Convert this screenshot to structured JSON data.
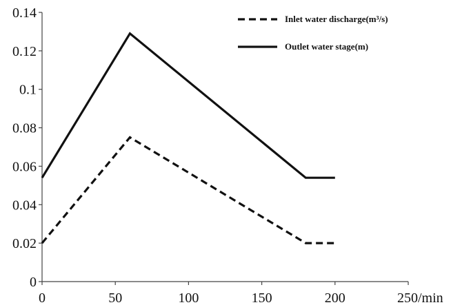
{
  "chart_data": {
    "type": "line",
    "x_tick_labels": [
      "0",
      "50",
      "100",
      "150",
      "200",
      "250/min"
    ],
    "y_tick_labels": [
      "0",
      "0.02",
      "0.04",
      "0.06",
      "0.08",
      "0.1",
      "0.12",
      "0.14"
    ],
    "xlim": [
      0,
      250
    ],
    "ylim": [
      0,
      0.14
    ],
    "x_ticks": [
      0,
      50,
      100,
      150,
      200,
      250
    ],
    "y_ticks": [
      0,
      0.02,
      0.04,
      0.06,
      0.08,
      0.1,
      0.12,
      0.14
    ],
    "grid": false,
    "legend_position": "top-right",
    "series": [
      {
        "name": "Inlet water discharge(m³/s)",
        "legend_label": "Inlet water discharge(m³/s)",
        "style": "dashed",
        "color": "#111111",
        "x": [
          0,
          60,
          180,
          200
        ],
        "y": [
          0.02,
          0.075,
          0.02,
          0.02
        ]
      },
      {
        "name": "Outlet water stage(m)",
        "legend_label": "Outlet water stage(m)",
        "style": "solid",
        "color": "#111111",
        "x": [
          0,
          60,
          180,
          200
        ],
        "y": [
          0.054,
          0.129,
          0.054,
          0.054
        ]
      }
    ]
  }
}
